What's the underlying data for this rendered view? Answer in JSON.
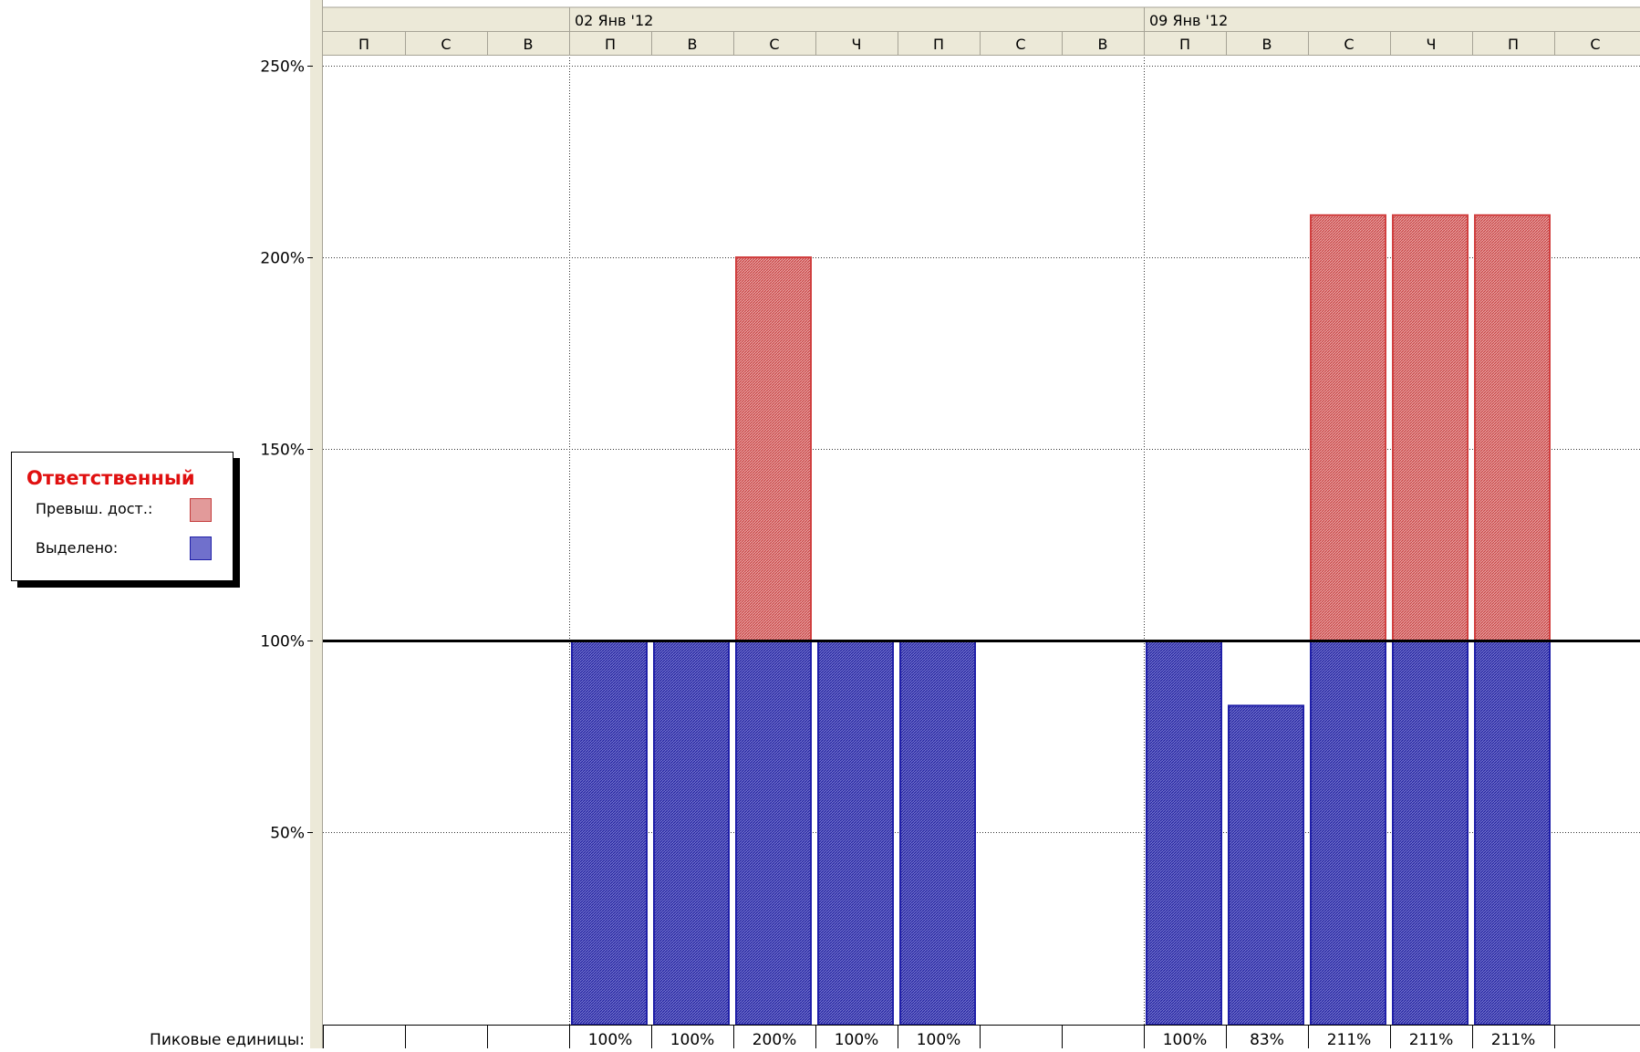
{
  "chart_data": {
    "type": "bar",
    "stacked": true,
    "week_headers": [
      "02 Янв '12",
      "09 Янв '12"
    ],
    "categories": [
      "П",
      "С",
      "В",
      "П",
      "В",
      "С",
      "Ч",
      "П",
      "С",
      "В",
      "П",
      "В",
      "С",
      "Ч",
      "П",
      "С"
    ],
    "series": [
      {
        "name": "Выделено:",
        "color": "#2020a8",
        "values": [
          0,
          0,
          0,
          100,
          100,
          100,
          100,
          100,
          0,
          0,
          100,
          83,
          100,
          100,
          100,
          0
        ]
      },
      {
        "name": "Превыш. дост.:",
        "color": "#d04040",
        "values": [
          0,
          0,
          0,
          0,
          0,
          100,
          0,
          0,
          0,
          0,
          0,
          0,
          111,
          111,
          111,
          0
        ]
      }
    ],
    "peak_label": "Пиковые единицы:",
    "peak_values": [
      "",
      "",
      "",
      "100%",
      "100%",
      "200%",
      "100%",
      "100%",
      "",
      "",
      "100%",
      "83%",
      "211%",
      "211%",
      "211%",
      ""
    ],
    "y_ticks": [
      "50%",
      "100%",
      "150%",
      "200%",
      "250%"
    ],
    "y_tick_values": [
      50,
      100,
      150,
      200,
      250
    ],
    "ylim": [
      0,
      260
    ],
    "reference_line": 100,
    "grid": true,
    "legend": {
      "title": "Ответственный",
      "placement": "left",
      "items": [
        "Превыш. дост.:",
        "Выделено:"
      ]
    }
  }
}
